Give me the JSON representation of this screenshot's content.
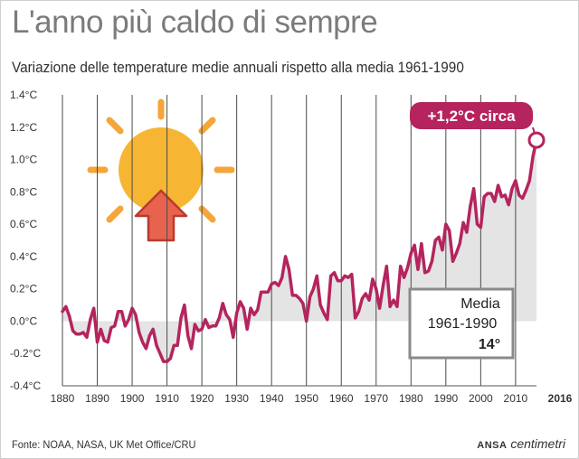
{
  "title": "L'anno più caldo di sempre",
  "subtitle": "Variazione delle temperature medie annuali rispetto alla media 1961-1990",
  "source": "Fonte: NOAA, NASA, UK Met Office/CRU",
  "brand": {
    "agency": "ANSA",
    "name": "centimetri"
  },
  "colors": {
    "line": "#b5245e",
    "fill": "#e4e4e4",
    "accent": "#b5245e",
    "sun": "#f5b335",
    "arrow": "#e5584a"
  },
  "icons": {
    "sun": "sun-icon",
    "arrow": "up-arrow-icon"
  },
  "chart_data": {
    "type": "area",
    "title": "L'anno più caldo di sempre",
    "subtitle": "Variazione delle temperature medie annuali rispetto alla media 1961-1990",
    "xlim": [
      1880,
      2016
    ],
    "ylim": [
      -0.4,
      1.4
    ],
    "yticks": [
      "1.4°C",
      "1.2°C",
      "1.0°C",
      "0.8°C",
      "0.6°C",
      "0.4°C",
      "0.2°C",
      "0.0°C",
      "-0.2°C",
      "-0.4°C"
    ],
    "yticks_values": [
      1.4,
      1.2,
      1.0,
      0.8,
      0.6,
      0.4,
      0.2,
      0.0,
      -0.2,
      -0.4
    ],
    "xticks": [
      "1880",
      "1890",
      "1900",
      "1910",
      "1920",
      "1930",
      "1940",
      "1950",
      "1960",
      "1970",
      "1980",
      "1990",
      "2000",
      "2010"
    ],
    "xticks_values": [
      1880,
      1890,
      1900,
      1910,
      1920,
      1930,
      1940,
      1950,
      1960,
      1970,
      1980,
      1990,
      2000,
      2010
    ],
    "last_tick": "2016",
    "grid": "vertical",
    "x": [
      1880,
      1881,
      1882,
      1883,
      1884,
      1885,
      1886,
      1887,
      1888,
      1889,
      1890,
      1891,
      1892,
      1893,
      1894,
      1895,
      1896,
      1897,
      1898,
      1899,
      1900,
      1901,
      1902,
      1903,
      1904,
      1905,
      1906,
      1907,
      1908,
      1909,
      1910,
      1911,
      1912,
      1913,
      1914,
      1915,
      1916,
      1917,
      1918,
      1919,
      1920,
      1921,
      1922,
      1923,
      1924,
      1925,
      1926,
      1927,
      1928,
      1929,
      1930,
      1931,
      1932,
      1933,
      1934,
      1935,
      1936,
      1937,
      1938,
      1939,
      1940,
      1941,
      1942,
      1943,
      1944,
      1945,
      1946,
      1947,
      1948,
      1949,
      1950,
      1951,
      1952,
      1953,
      1954,
      1955,
      1956,
      1957,
      1958,
      1959,
      1960,
      1961,
      1962,
      1963,
      1964,
      1965,
      1966,
      1967,
      1968,
      1969,
      1970,
      1971,
      1972,
      1973,
      1974,
      1975,
      1976,
      1977,
      1978,
      1979,
      1980,
      1981,
      1982,
      1983,
      1984,
      1985,
      1986,
      1987,
      1988,
      1989,
      1990,
      1991,
      1992,
      1993,
      1994,
      1995,
      1996,
      1997,
      1998,
      1999,
      2000,
      2001,
      2002,
      2003,
      2004,
      2005,
      2006,
      2007,
      2008,
      2009,
      2010,
      2011,
      2012,
      2013,
      2014,
      2015,
      2016
    ],
    "y": [
      0.06,
      0.09,
      0.03,
      -0.06,
      -0.08,
      -0.08,
      -0.07,
      -0.1,
      0.01,
      0.08,
      -0.13,
      -0.05,
      -0.12,
      -0.13,
      -0.04,
      -0.03,
      0.06,
      0.06,
      -0.03,
      0.01,
      0.08,
      0.04,
      -0.07,
      -0.13,
      -0.17,
      -0.09,
      -0.05,
      -0.15,
      -0.2,
      -0.25,
      -0.25,
      -0.23,
      -0.15,
      -0.15,
      0.02,
      0.1,
      -0.09,
      -0.17,
      -0.02,
      -0.06,
      -0.05,
      0.01,
      -0.04,
      -0.03,
      -0.03,
      0.02,
      0.11,
      0.04,
      0.01,
      -0.1,
      0.05,
      0.12,
      0.08,
      -0.05,
      0.08,
      0.04,
      0.07,
      0.18,
      0.18,
      0.18,
      0.23,
      0.24,
      0.22,
      0.27,
      0.4,
      0.32,
      0.16,
      0.16,
      0.14,
      0.11,
      0.0,
      0.15,
      0.2,
      0.28,
      0.1,
      0.05,
      0.01,
      0.28,
      0.3,
      0.25,
      0.25,
      0.28,
      0.27,
      0.29,
      0.02,
      0.06,
      0.14,
      0.17,
      0.13,
      0.26,
      0.2,
      0.08,
      0.22,
      0.34,
      0.09,
      0.13,
      0.09,
      0.34,
      0.27,
      0.33,
      0.42,
      0.47,
      0.32,
      0.48,
      0.3,
      0.31,
      0.37,
      0.5,
      0.52,
      0.44,
      0.6,
      0.56,
      0.37,
      0.42,
      0.48,
      0.61,
      0.55,
      0.71,
      0.82,
      0.6,
      0.58,
      0.77,
      0.79,
      0.79,
      0.74,
      0.84,
      0.77,
      0.78,
      0.72,
      0.82,
      0.87,
      0.78,
      0.76,
      0.81,
      0.87,
      1.02,
      1.12
    ],
    "annotations": {
      "peak_label": "+1,2°C circa",
      "mean_label_line1": "Media",
      "mean_label_line2": "1961-1990",
      "mean_value": "14°"
    }
  }
}
